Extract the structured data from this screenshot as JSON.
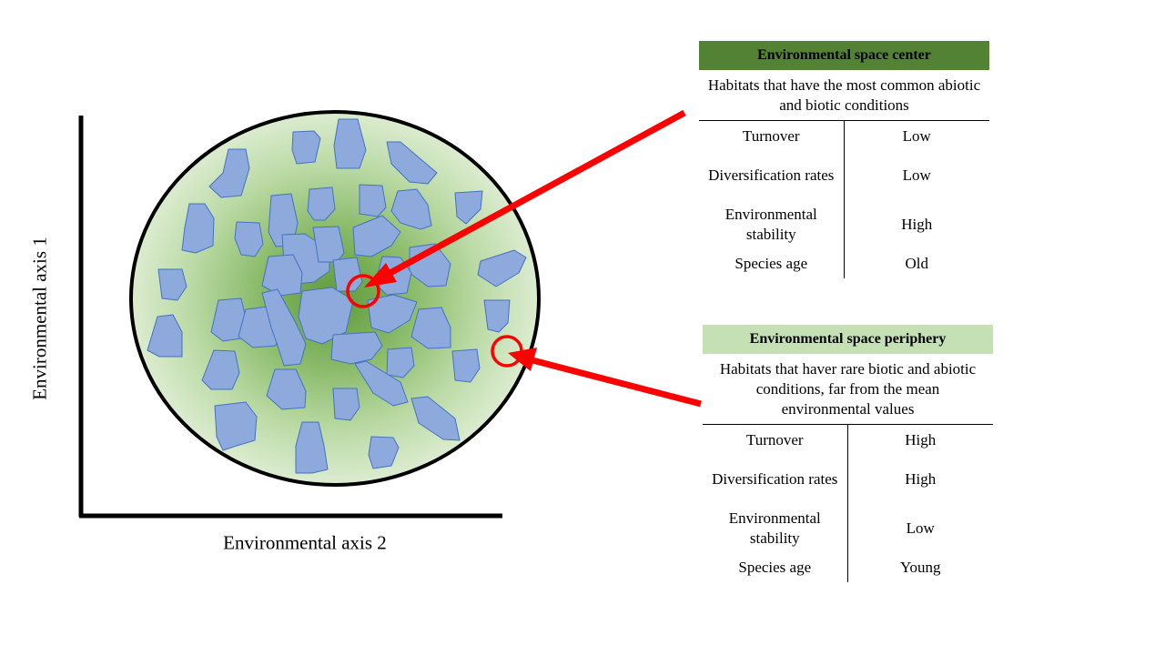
{
  "axes": {
    "y_label": "Environmental axis 1",
    "x_label": "Environmental axis 2"
  },
  "colors": {
    "center_header": "#548235",
    "periphery_header": "#c5e0b4",
    "habitat_fill": "#8ea9db",
    "arrow": "#ff0000"
  },
  "center_panel": {
    "title": "Environmental space center",
    "description": "Habitats that have the most common abiotic and biotic conditions",
    "rows": [
      {
        "label": "Turnover",
        "value": "Low"
      },
      {
        "label": "Diversification rates",
        "value": "Low"
      },
      {
        "label": "Environmental stability",
        "value": "High"
      },
      {
        "label": "Species age",
        "value": "Old"
      }
    ]
  },
  "periphery_panel": {
    "title": "Environmental space periphery",
    "description": "Habitats that haver rare biotic and abiotic conditions, far from the mean environmental values",
    "rows": [
      {
        "label": "Turnover",
        "value": "High"
      },
      {
        "label": "Diversification rates",
        "value": "High"
      },
      {
        "label": "Environmental stability",
        "value": "Low"
      },
      {
        "label": "Species age",
        "value": "Young"
      }
    ]
  }
}
